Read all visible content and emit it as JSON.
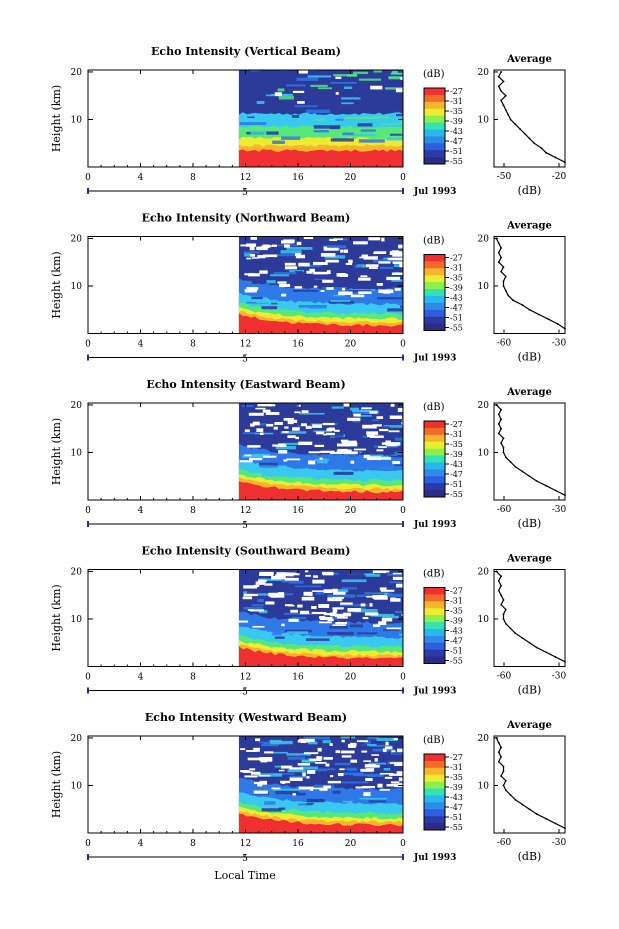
{
  "figure": {
    "xaxis_title": "Local Time",
    "date_label": "Jul 1993",
    "colorbar_unit": "(dB)",
    "colorbar_ticks": [
      "-27",
      "-31",
      "-35",
      "-39",
      "-43",
      "-47",
      "-51",
      "-55"
    ],
    "colorbar_colors": [
      "#f03030",
      "#f46a2a",
      "#f6b52c",
      "#ecec30",
      "#8cf04c",
      "#34e2b4",
      "#28b8f0",
      "#2e8ce8",
      "#2e5ee0",
      "#2c3aa8",
      "#2a2c88"
    ],
    "echo_colors": {
      "strong": "#f03030",
      "orange": "#f6b52c",
      "yellow": "#ecec30",
      "green": "#56e87a",
      "cyan": "#38c8f0",
      "blue": "#2e78e8",
      "navy": "#2c3a9a"
    }
  },
  "panels": [
    {
      "title": "Echo Intensity (Vertical Beam)",
      "ylabel": "Height (km)",
      "avg_title": "Average",
      "avg_xlabel": "(dB)",
      "avg_ticks": [
        "-50",
        "-20"
      ]
    },
    {
      "title": "Echo Intensity (Northward Beam)",
      "ylabel": "Height (km)",
      "avg_title": "Average",
      "avg_xlabel": "(dB)",
      "avg_ticks": [
        "-60",
        "-30"
      ]
    },
    {
      "title": "Echo Intensity (Eastward Beam)",
      "ylabel": "Height (km)",
      "avg_title": "Average",
      "avg_xlabel": "(dB)",
      "avg_ticks": [
        "-60",
        "-30"
      ]
    },
    {
      "title": "Echo Intensity (Southward Beam)",
      "ylabel": "Height (km)",
      "avg_title": "Average",
      "avg_xlabel": "(dB)",
      "avg_ticks": [
        "-60",
        "-30"
      ]
    },
    {
      "title": "Echo Intensity (Westward Beam)",
      "ylabel": "Height (km)",
      "avg_title": "Average",
      "avg_xlabel": "(dB)",
      "avg_ticks": [
        "-60",
        "-30"
      ]
    }
  ],
  "chart_data": [
    {
      "type": "heatmap",
      "title": "Echo Intensity (Vertical Beam)",
      "ylabel": "Height (km)",
      "x_ticks": [
        "0",
        "4",
        "8",
        "12",
        "16",
        "20",
        "0"
      ],
      "y_ticks": [
        "20",
        "10"
      ],
      "xlim": [
        0,
        24
      ],
      "ylim": [
        0,
        20
      ],
      "day_marker": "5",
      "data_start_hour": 11.5,
      "profile": {
        "title": "Average",
        "xlabel": "(dB)",
        "xlim": [
          -50,
          -20
        ],
        "x_ticks": [
          "-50",
          "-20"
        ],
        "ylim": [
          0,
          20
        ],
        "heights": [
          1,
          2,
          3,
          4,
          5,
          6,
          7,
          8,
          9,
          10,
          11,
          12,
          13,
          14,
          15,
          16,
          17,
          18,
          19,
          20
        ],
        "values": [
          -20,
          -24,
          -28,
          -30,
          -33,
          -35,
          -37,
          -39,
          -41,
          -43,
          -44,
          -45,
          -46,
          -47,
          -45,
          -47,
          -48,
          -46,
          -48,
          -47
        ]
      }
    },
    {
      "type": "heatmap",
      "title": "Echo Intensity (Northward Beam)",
      "ylabel": "Height (km)",
      "x_ticks": [
        "0",
        "4",
        "8",
        "12",
        "16",
        "20",
        "0"
      ],
      "y_ticks": [
        "20",
        "10"
      ],
      "xlim": [
        0,
        24
      ],
      "ylim": [
        0,
        20
      ],
      "day_marker": "5",
      "data_start_hour": 11.5,
      "profile": {
        "title": "Average",
        "xlabel": "(dB)",
        "xlim": [
          -60,
          -30
        ],
        "x_ticks": [
          "-60",
          "-30"
        ],
        "ylim": [
          0,
          20
        ],
        "heights": [
          1,
          2,
          3,
          4,
          5,
          6,
          7,
          8,
          9,
          10,
          11,
          12,
          13,
          14,
          15,
          16,
          17,
          18,
          19,
          20
        ],
        "values": [
          -30,
          -33,
          -37,
          -41,
          -45,
          -48,
          -52,
          -54,
          -55,
          -56,
          -56,
          -55,
          -57,
          -56,
          -58,
          -57,
          -58,
          -57,
          -58,
          -59
        ]
      }
    },
    {
      "type": "heatmap",
      "title": "Echo Intensity (Eastward Beam)",
      "ylabel": "Height (km)",
      "x_ticks": [
        "0",
        "4",
        "8",
        "12",
        "16",
        "20",
        "0"
      ],
      "y_ticks": [
        "20",
        "10"
      ],
      "xlim": [
        0,
        24
      ],
      "ylim": [
        0,
        20
      ],
      "day_marker": "5",
      "data_start_hour": 11.5,
      "profile": {
        "title": "Average",
        "xlabel": "(dB)",
        "xlim": [
          -60,
          -30
        ],
        "x_ticks": [
          "-60",
          "-30"
        ],
        "ylim": [
          0,
          20
        ],
        "heights": [
          1,
          2,
          3,
          4,
          5,
          6,
          7,
          8,
          9,
          10,
          11,
          12,
          13,
          14,
          15,
          16,
          17,
          18,
          19,
          20
        ],
        "values": [
          -30,
          -34,
          -38,
          -42,
          -45,
          -48,
          -51,
          -53,
          -55,
          -56,
          -56,
          -57,
          -56,
          -58,
          -57,
          -58,
          -57,
          -58,
          -57,
          -59
        ]
      }
    },
    {
      "type": "heatmap",
      "title": "Echo Intensity (Southward Beam)",
      "ylabel": "Height (km)",
      "x_ticks": [
        "0",
        "4",
        "8",
        "12",
        "16",
        "20",
        "0"
      ],
      "y_ticks": [
        "20",
        "10"
      ],
      "xlim": [
        0,
        24
      ],
      "ylim": [
        0,
        20
      ],
      "day_marker": "5",
      "data_start_hour": 11.5,
      "profile": {
        "title": "Average",
        "xlabel": "(dB)",
        "xlim": [
          -60,
          -30
        ],
        "x_ticks": [
          "-60",
          "-30"
        ],
        "ylim": [
          0,
          20
        ],
        "heights": [
          1,
          2,
          3,
          4,
          5,
          6,
          7,
          8,
          9,
          10,
          11,
          12,
          13,
          14,
          15,
          16,
          17,
          18,
          19,
          20
        ],
        "values": [
          -30,
          -34,
          -38,
          -42,
          -45,
          -48,
          -51,
          -53,
          -55,
          -56,
          -56,
          -55,
          -57,
          -56,
          -57,
          -58,
          -57,
          -58,
          -57,
          -59
        ]
      }
    },
    {
      "type": "heatmap",
      "title": "Echo Intensity (Westward Beam)",
      "ylabel": "Height (km)",
      "x_ticks": [
        "0",
        "4",
        "8",
        "12",
        "16",
        "20",
        "0"
      ],
      "y_ticks": [
        "20",
        "10"
      ],
      "xlim": [
        0,
        24
      ],
      "ylim": [
        0,
        20
      ],
      "day_marker": "5",
      "data_start_hour": 11.5,
      "profile": {
        "title": "Average",
        "xlabel": "(dB)",
        "xlim": [
          -60,
          -30
        ],
        "x_ticks": [
          "-60",
          "-30"
        ],
        "ylim": [
          0,
          20
        ],
        "heights": [
          1,
          2,
          3,
          4,
          5,
          6,
          7,
          8,
          9,
          10,
          11,
          12,
          13,
          14,
          15,
          16,
          17,
          18,
          19,
          20
        ],
        "values": [
          -30,
          -34,
          -38,
          -42,
          -45,
          -48,
          -51,
          -53,
          -55,
          -56,
          -55,
          -57,
          -56,
          -56,
          -58,
          -57,
          -58,
          -57,
          -58,
          -59
        ]
      }
    }
  ]
}
